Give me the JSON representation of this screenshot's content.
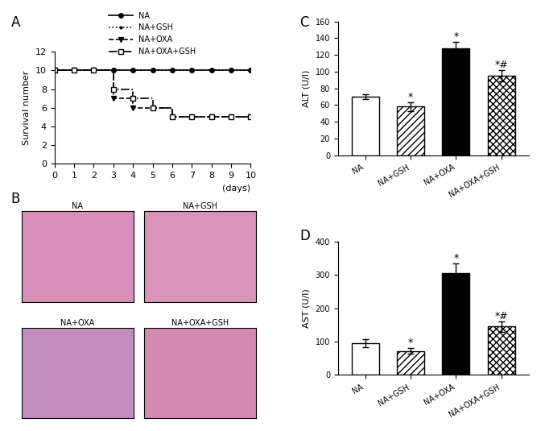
{
  "chart_data": [
    {
      "type": "line",
      "title": "A",
      "xlabel": "(days)",
      "ylabel": "Survival number",
      "x": [
        0,
        1,
        2,
        3,
        4,
        5,
        6,
        7,
        8,
        9,
        10
      ],
      "xlim": [
        0,
        10
      ],
      "xticks": [
        0,
        1,
        2,
        3,
        4,
        5,
        6,
        7,
        8,
        9,
        10
      ],
      "ylim": [
        0,
        12
      ],
      "yticks": [
        0,
        2,
        4,
        6,
        8,
        10,
        12
      ],
      "legend": "upper center",
      "series": [
        {
          "name": "NA",
          "color": "#000000",
          "marker": "o",
          "line_style": "solid",
          "values": [
            10,
            10,
            10,
            10,
            10,
            10,
            10,
            10,
            10,
            10,
            10
          ]
        },
        {
          "name": "NA+GSH",
          "color": "#000000",
          "marker": ".",
          "line_style": "dotted",
          "values": [
            10,
            10,
            10,
            10,
            10,
            10,
            10,
            10,
            10,
            10,
            10
          ]
        },
        {
          "name": "NA+OXA",
          "color": "#000000",
          "marker": "v",
          "line_style": "dashed",
          "values": [
            10,
            10,
            10,
            7,
            6,
            6,
            5,
            5,
            5,
            5,
            5
          ]
        },
        {
          "name": "NA+OXA+GSH",
          "color": "#000000",
          "marker": "s",
          "line_style": "dashdot",
          "values": [
            10,
            10,
            10,
            8,
            7,
            6,
            5,
            5,
            5,
            5,
            5
          ]
        }
      ]
    },
    {
      "type": "image",
      "title": "B",
      "panels": [
        "NA",
        "NA+GSH",
        "NA+OXA",
        "NA+OXA+GSH"
      ],
      "colors": [
        "#d98fb8",
        "#d894b9",
        "#c28ec0",
        "#d48bb2"
      ]
    },
    {
      "type": "bar",
      "title": "C",
      "ylabel": "ALT (U/l)",
      "categories": [
        "NA",
        "NA+GSH",
        "NA+OXA",
        "NA+OXA+GSH"
      ],
      "values": [
        70,
        58,
        128,
        95
      ],
      "errors": [
        3,
        5,
        8,
        7
      ],
      "annotations": [
        null,
        "*",
        "*",
        "*#"
      ],
      "colors": [
        "#ffffff",
        "#ffffff",
        "#000000",
        "#ffffff"
      ],
      "ylim": [
        0,
        160
      ],
      "yticks": [
        0,
        20,
        40,
        60,
        80,
        100,
        120,
        140,
        160
      ]
    },
    {
      "type": "bar",
      "title": "D",
      "ylabel": "AST (U/l)",
      "categories": [
        "NA",
        "NA+GSH",
        "NA+OXA",
        "NA+OXA+GSH"
      ],
      "values": [
        95,
        72,
        305,
        145
      ],
      "errors": [
        12,
        8,
        30,
        15
      ],
      "annotations": [
        null,
        "*",
        "*",
        "*#"
      ],
      "colors": [
        "#ffffff",
        "#ffffff",
        "#000000",
        "#ffffff"
      ],
      "ylim": [
        0,
        400
      ],
      "yticks": [
        0,
        100,
        200,
        300,
        400
      ]
    }
  ]
}
